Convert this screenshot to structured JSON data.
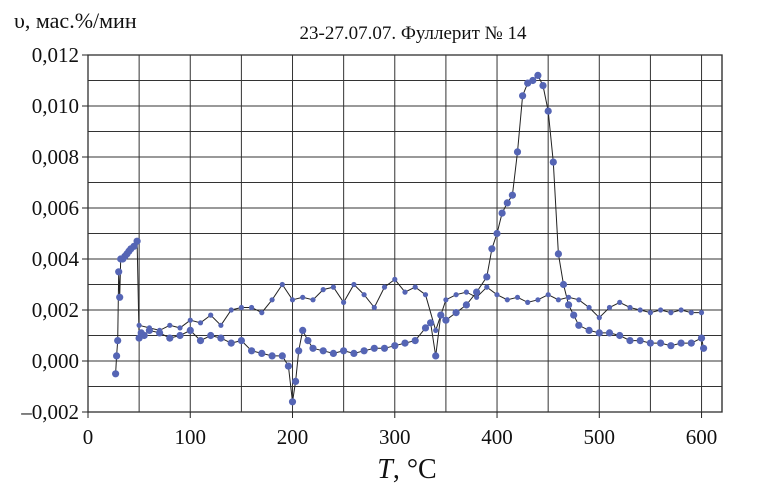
{
  "chart_data": {
    "type": "scatter",
    "title": "23-27.07.07. Фуллерит № 14",
    "ylabel": "υ, мас.%/мин",
    "xlabel_symbol": "T",
    "xlabel_unit": ", °C",
    "xlim": [
      0,
      620
    ],
    "ylim": [
      -0.002,
      0.012
    ],
    "x_ticks": [
      0,
      100,
      200,
      300,
      400,
      500,
      600
    ],
    "x_tick_labels": [
      "0",
      "100",
      "200",
      "300",
      "400",
      "500",
      "600"
    ],
    "y_ticks": [
      -0.002,
      0.0,
      0.002,
      0.004,
      0.006,
      0.008,
      0.01,
      0.012
    ],
    "y_tick_labels": [
      "–0,002",
      "0,000",
      "0,002",
      "0,004",
      "0,006",
      "0,008",
      "0,010",
      "0,012"
    ],
    "grid": true,
    "color": "#5565b5",
    "line_color": "#222222",
    "series": [
      {
        "values_x": [
          27,
          28,
          29,
          30,
          31,
          32,
          34,
          36,
          38,
          40,
          42,
          45,
          48,
          50,
          52,
          55,
          60,
          70,
          80,
          90,
          100,
          110,
          120,
          130,
          140,
          150,
          160,
          170,
          180,
          190,
          196,
          200,
          203,
          206,
          210,
          215,
          220,
          230,
          240,
          250,
          260,
          270,
          280,
          290,
          300,
          310,
          320,
          330,
          335,
          340,
          345,
          350,
          360,
          370,
          380,
          390,
          395,
          400,
          405,
          410,
          415,
          420,
          425,
          430,
          435,
          440,
          445,
          450,
          455,
          460,
          465,
          470,
          475,
          480,
          490,
          500,
          510,
          520,
          530,
          540,
          550,
          560,
          570,
          580,
          590,
          600,
          602
        ],
        "values_y": [
          -0.0005,
          0.0002,
          0.0008,
          0.0035,
          0.0025,
          0.004,
          0.004,
          0.0041,
          0.0042,
          0.0043,
          0.0044,
          0.0045,
          0.0047,
          0.0009,
          0.0011,
          0.001,
          0.0012,
          0.0011,
          0.0009,
          0.001,
          0.0012,
          0.0008,
          0.001,
          0.0009,
          0.0007,
          0.0008,
          0.0004,
          0.0003,
          0.0002,
          0.0002,
          -0.0002,
          -0.0016,
          -0.0008,
          0.0004,
          0.0012,
          0.0008,
          0.0005,
          0.0004,
          0.0003,
          0.0004,
          0.0003,
          0.0004,
          0.0005,
          0.0005,
          0.0006,
          0.0007,
          0.0008,
          0.0013,
          0.0015,
          0.0002,
          0.0018,
          0.0016,
          0.0019,
          0.0022,
          0.0027,
          0.0033,
          0.0044,
          0.005,
          0.0058,
          0.0062,
          0.0065,
          0.0082,
          0.0104,
          0.0109,
          0.011,
          0.0112,
          0.0108,
          0.0098,
          0.0078,
          0.0042,
          0.003,
          0.0022,
          0.0018,
          0.0014,
          0.0012,
          0.0011,
          0.0011,
          0.001,
          0.0008,
          0.0008,
          0.0007,
          0.0007,
          0.0006,
          0.0007,
          0.0007,
          0.0009,
          0.0005
        ]
      },
      {
        "values_x": [
          50,
          60,
          70,
          80,
          90,
          100,
          110,
          120,
          130,
          140,
          150,
          160,
          170,
          180,
          190,
          200,
          210,
          220,
          230,
          240,
          250,
          260,
          270,
          280,
          290,
          300,
          310,
          320,
          330,
          340,
          350,
          360,
          370,
          380,
          390,
          400,
          410,
          420,
          430,
          440,
          450,
          460,
          470,
          480,
          490,
          500,
          510,
          520,
          530,
          540,
          550,
          560,
          570,
          580,
          590,
          600
        ],
        "values_y": [
          0.0014,
          0.0013,
          0.0012,
          0.0014,
          0.0013,
          0.0016,
          0.0015,
          0.0018,
          0.0014,
          0.002,
          0.0021,
          0.0021,
          0.0019,
          0.0024,
          0.003,
          0.0024,
          0.0025,
          0.0024,
          0.0028,
          0.0029,
          0.0023,
          0.003,
          0.0026,
          0.0021,
          0.0029,
          0.0032,
          0.0027,
          0.0029,
          0.0026,
          0.0012,
          0.0024,
          0.0026,
          0.0027,
          0.0025,
          0.0029,
          0.0026,
          0.0024,
          0.0025,
          0.0023,
          0.0024,
          0.0026,
          0.0024,
          0.0025,
          0.0024,
          0.0021,
          0.0017,
          0.0021,
          0.0023,
          0.0021,
          0.002,
          0.0019,
          0.002,
          0.0019,
          0.002,
          0.0019,
          0.0019
        ]
      }
    ]
  }
}
